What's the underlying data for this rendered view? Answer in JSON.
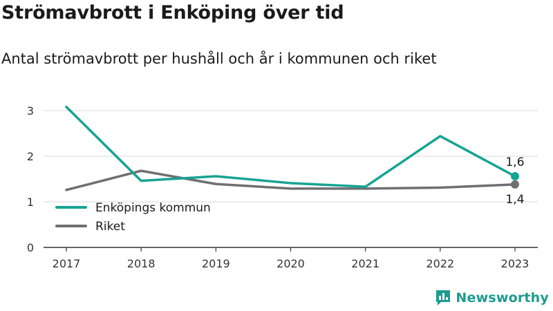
{
  "title": "Strömavbrott i Enköping över tid",
  "subtitle": "Antal strömavbrott per hushåll och år i kommunen och riket",
  "brand": {
    "name": "Newsworthy",
    "icon": "newsworthy-logo-icon",
    "color": "#1b9c8f"
  },
  "chart_data": {
    "type": "line",
    "title": "Strömavbrott i Enköping över tid",
    "subtitle": "Antal strömavbrott per hushåll och år i kommunen och riket",
    "x": [
      "2017",
      "2018",
      "2019",
      "2020",
      "2021",
      "2022",
      "2023"
    ],
    "ylim": [
      0,
      3
    ],
    "yticks": [
      "0",
      "1",
      "2",
      "3"
    ],
    "grid": true,
    "legend_position": "bottom-left",
    "series": [
      {
        "name": "Enköpings kommun",
        "color": "#16a393",
        "values": [
          3.08,
          1.46,
          1.56,
          1.41,
          1.33,
          2.44,
          1.56
        ],
        "end_label": "1,6"
      },
      {
        "name": "Riket",
        "color": "#6e6e73",
        "values": [
          1.26,
          1.68,
          1.39,
          1.29,
          1.29,
          1.31,
          1.38
        ],
        "end_label": "1,4"
      }
    ]
  }
}
